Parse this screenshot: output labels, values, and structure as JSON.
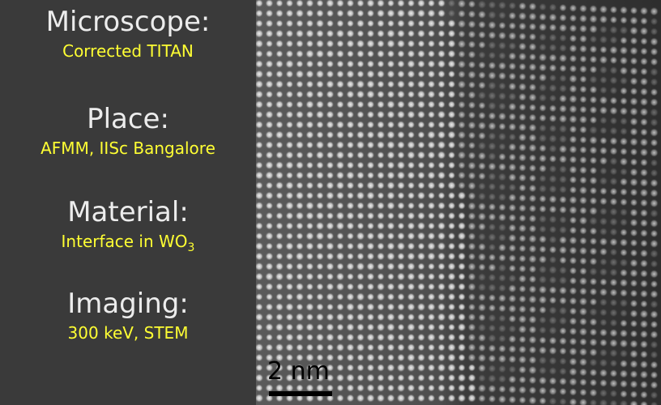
{
  "info": [
    {
      "heading": "Microscope:",
      "value": "Corrected TITAN"
    },
    {
      "heading": "Place:",
      "value": "AFMM, IISc Bangalore"
    },
    {
      "heading": "Material:",
      "value": "Interface in WO",
      "value_subscript": "3"
    },
    {
      "heading": "Imaging:",
      "value": "300 keV, STEM"
    }
  ],
  "micrograph": {
    "scale_bar_label": "2 nm"
  },
  "colors": {
    "panel_background": "#3a3a3a",
    "heading_text": "#ececec",
    "value_text": "#ffff33",
    "scale_bar": "#000000"
  }
}
